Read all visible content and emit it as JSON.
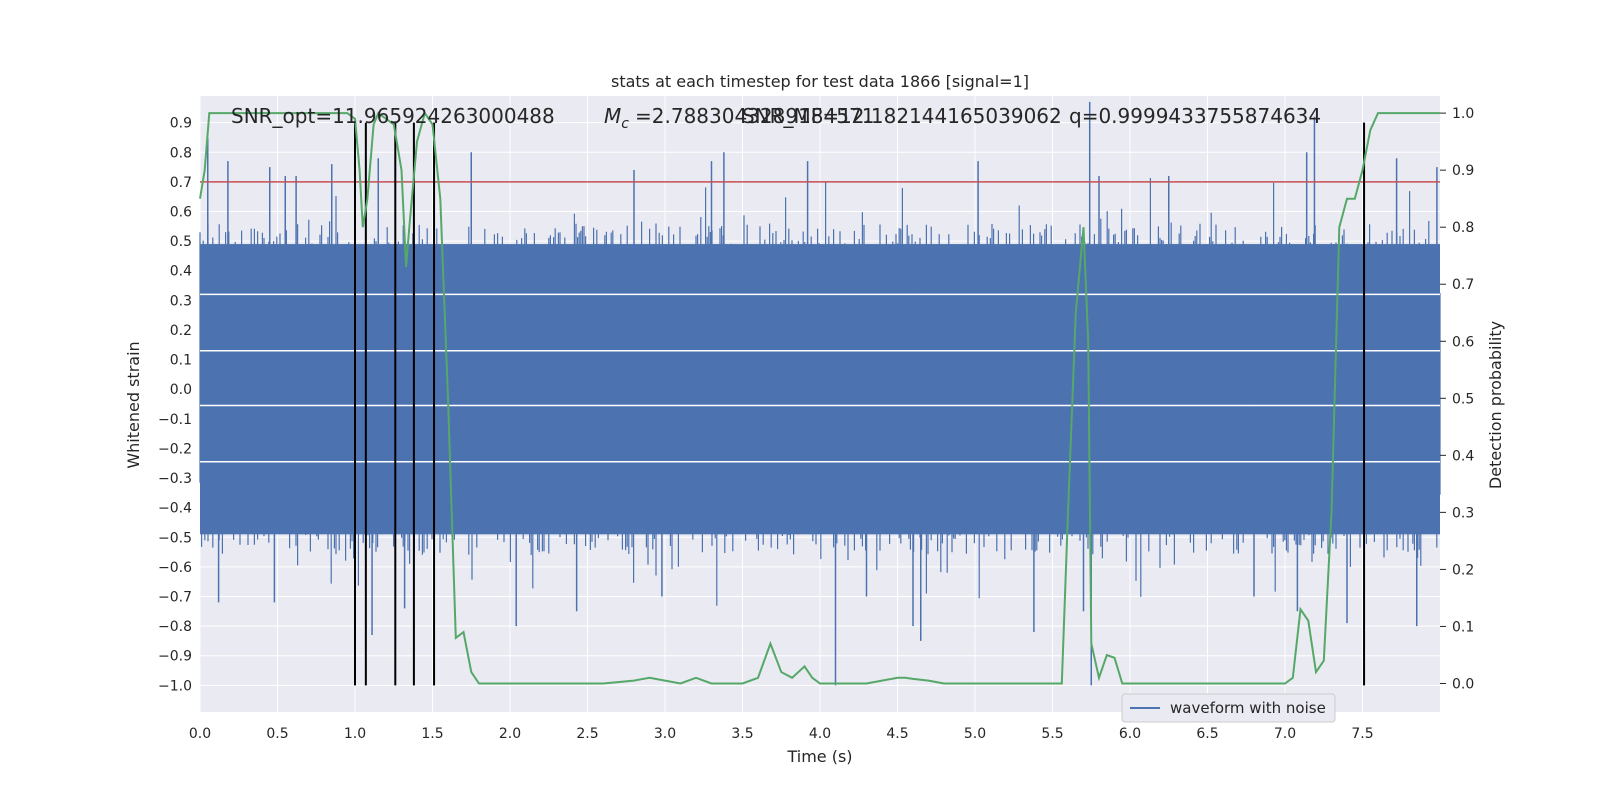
{
  "chart_data": {
    "type": "line",
    "title": "stats at each timestep for test data 1866 [signal=1]",
    "xlabel": "Time (s)",
    "ylabel": "Whitened strain",
    "y2label": "Detection probability",
    "xlim": [
      0.0,
      8.0
    ],
    "ylim": [
      -1.09,
      0.99
    ],
    "y2lim": [
      -0.05,
      1.03
    ],
    "xticks": [
      "0.0",
      "0.5",
      "1.0",
      "1.5",
      "2.0",
      "2.5",
      "3.0",
      "3.5",
      "4.0",
      "4.5",
      "5.0",
      "5.5",
      "6.0",
      "6.5",
      "7.0",
      "7.5"
    ],
    "yticks": [
      "0.9",
      "0.8",
      "0.7",
      "0.6",
      "0.5",
      "0.4",
      "0.3",
      "0.2",
      "0.1",
      "0.0",
      "−0.1",
      "−0.2",
      "−0.3",
      "−0.4",
      "−0.5",
      "−0.6",
      "−0.7",
      "−0.8",
      "−0.9",
      "−1.0"
    ],
    "y2ticks": [
      "1.0",
      "0.9",
      "0.8",
      "0.7",
      "0.6",
      "0.5",
      "0.4",
      "0.3",
      "0.2",
      "0.1",
      "0.0"
    ],
    "annotations": {
      "snr_opt": "SNR_opt=11.965924263000488",
      "mc": "=2.7883043289184571",
      "snr_mf": "SNR_MF=12.182144165039062",
      "q": "q=0.9999433755874634"
    },
    "legend": {
      "label": "waveform with noise",
      "loc": "lower right"
    },
    "threshold": 0.7,
    "grid": true,
    "white_bands": [
      0.32,
      0.13,
      -0.055,
      -0.245
    ],
    "waveform": {
      "name": "waveform with noise",
      "color": "#4c72b0",
      "core_amplitude": 0.5
    },
    "spikes": [
      {
        "x": 0.05,
        "y": 0.85
      },
      {
        "x": 0.12,
        "y": -0.72
      },
      {
        "x": 0.18,
        "y": 0.77
      },
      {
        "x": 0.45,
        "y": 0.75
      },
      {
        "x": 0.48,
        "y": -0.72
      },
      {
        "x": 0.55,
        "y": 0.72
      },
      {
        "x": 0.62,
        "y": 0.72
      },
      {
        "x": 0.85,
        "y": 0.76
      },
      {
        "x": 1.11,
        "y": -0.83
      },
      {
        "x": 1.15,
        "y": 0.78
      },
      {
        "x": 1.32,
        "y": -0.74
      },
      {
        "x": 1.38,
        "y": -0.92
      },
      {
        "x": 1.75,
        "y": 0.8
      },
      {
        "x": 2.04,
        "y": -0.8
      },
      {
        "x": 2.43,
        "y": -0.75
      },
      {
        "x": 2.8,
        "y": 0.74
      },
      {
        "x": 2.98,
        "y": -0.7
      },
      {
        "x": 3.3,
        "y": 0.77
      },
      {
        "x": 3.38,
        "y": 0.8
      },
      {
        "x": 3.92,
        "y": 0.77
      },
      {
        "x": 4.1,
        "y": -1.0
      },
      {
        "x": 4.3,
        "y": -0.7
      },
      {
        "x": 4.6,
        "y": -0.8
      },
      {
        "x": 4.65,
        "y": -0.85
      },
      {
        "x": 5.02,
        "y": 0.77
      },
      {
        "x": 5.38,
        "y": -0.82
      },
      {
        "x": 5.7,
        "y": -0.75
      },
      {
        "x": 5.74,
        "y": 0.97
      },
      {
        "x": 5.75,
        "y": -1.0
      },
      {
        "x": 5.8,
        "y": 0.72
      },
      {
        "x": 6.25,
        "y": 0.72
      },
      {
        "x": 6.8,
        "y": -0.7
      },
      {
        "x": 7.08,
        "y": -0.75
      },
      {
        "x": 7.14,
        "y": 0.8
      },
      {
        "x": 7.19,
        "y": 0.92
      },
      {
        "x": 7.4,
        "y": -0.79
      },
      {
        "x": 7.72,
        "y": 0.78
      },
      {
        "x": 7.85,
        "y": -0.8
      },
      {
        "x": 7.98,
        "y": 0.75
      }
    ],
    "detections": [
      1.0,
      1.07,
      1.26,
      1.38,
      1.51,
      7.51
    ],
    "probability": {
      "name": "detection probability",
      "color": "#55a868",
      "x": [
        0.0,
        0.03,
        0.06,
        0.1,
        0.15,
        0.2,
        0.3,
        0.4,
        0.5,
        0.6,
        0.7,
        0.8,
        0.85,
        0.9,
        0.95,
        1.0,
        1.03,
        1.05,
        1.08,
        1.12,
        1.15,
        1.2,
        1.25,
        1.3,
        1.33,
        1.35,
        1.4,
        1.45,
        1.5,
        1.55,
        1.6,
        1.65,
        1.7,
        1.75,
        1.8,
        1.9,
        2.0,
        2.2,
        2.4,
        2.6,
        2.8,
        2.9,
        3.0,
        3.1,
        3.2,
        3.3,
        3.4,
        3.5,
        3.6,
        3.68,
        3.75,
        3.82,
        3.9,
        3.95,
        4.0,
        4.05,
        4.1,
        4.2,
        4.3,
        4.4,
        4.5,
        4.55,
        4.6,
        4.7,
        4.8,
        4.9,
        5.0,
        5.2,
        5.4,
        5.5,
        5.56,
        5.6,
        5.65,
        5.7,
        5.73,
        5.75,
        5.8,
        5.85,
        5.9,
        5.95,
        6.0,
        6.1,
        6.2,
        6.3,
        6.4,
        6.6,
        6.8,
        7.0,
        7.05,
        7.1,
        7.15,
        7.2,
        7.25,
        7.3,
        7.35,
        7.4,
        7.45,
        7.5,
        7.55,
        7.6,
        7.65,
        7.7,
        7.8,
        7.9,
        8.0
      ],
      "y": [
        0.85,
        0.9,
        1.0,
        1.0,
        1.0,
        1.0,
        1.0,
        1.0,
        1.0,
        1.0,
        1.0,
        1.0,
        1.0,
        1.0,
        1.0,
        0.99,
        0.9,
        0.8,
        0.85,
        0.98,
        1.0,
        0.99,
        0.98,
        0.9,
        0.73,
        0.8,
        0.95,
        1.0,
        0.98,
        0.85,
        0.5,
        0.08,
        0.09,
        0.02,
        0.0,
        0.0,
        0.0,
        0.0,
        0.0,
        0.0,
        0.005,
        0.01,
        0.005,
        0.0,
        0.01,
        0.0,
        0.0,
        0.0,
        0.01,
        0.07,
        0.02,
        0.01,
        0.03,
        0.01,
        0.0,
        0.0,
        0.0,
        0.0,
        0.0,
        0.005,
        0.01,
        0.01,
        0.008,
        0.005,
        0.0,
        0.0,
        0.0,
        0.0,
        0.0,
        0.0,
        0.0,
        0.3,
        0.65,
        0.8,
        0.6,
        0.07,
        0.01,
        0.05,
        0.045,
        0.0,
        0.0,
        0.0,
        0.0,
        0.0,
        0.0,
        0.0,
        0.0,
        0.0,
        0.01,
        0.13,
        0.11,
        0.02,
        0.04,
        0.3,
        0.8,
        0.85,
        0.85,
        0.9,
        0.97,
        1.0,
        1.0,
        1.0,
        1.0,
        1.0,
        1.0
      ]
    }
  }
}
